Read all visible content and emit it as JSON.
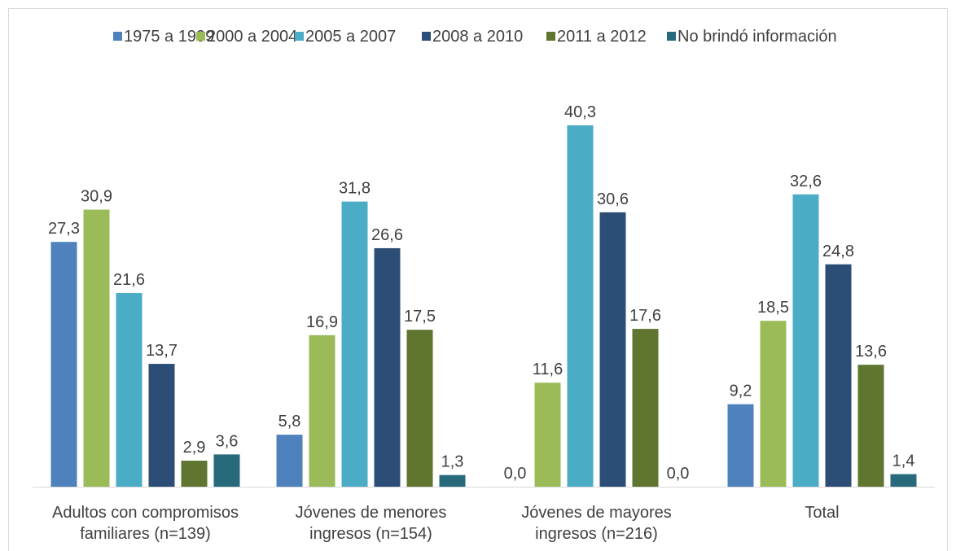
{
  "chart_data": {
    "type": "bar",
    "categories": [
      [
        "Adultos con compromisos",
        "familiares (n=139)"
      ],
      [
        "Jóvenes de menores",
        "ingresos (n=154)"
      ],
      [
        "Jóvenes de mayores",
        "ingresos (n=216)"
      ],
      [
        "Total"
      ]
    ],
    "series": [
      {
        "name": "1975 a 1999",
        "color": "#4f81bd",
        "values": [
          27.3,
          5.8,
          0.0,
          9.2
        ]
      },
      {
        "name": "2000 a 2004",
        "color": "#9bbb59",
        "values": [
          30.9,
          16.9,
          11.6,
          18.5
        ]
      },
      {
        "name": "2005 a 2007",
        "color": "#4bacc6",
        "values": [
          21.6,
          31.8,
          40.3,
          32.6
        ]
      },
      {
        "name": "2008 a 2010",
        "color": "#2c4d75",
        "values": [
          13.7,
          26.6,
          30.6,
          24.8
        ]
      },
      {
        "name": "2011 a 2012",
        "color": "#5f7530",
        "values": [
          2.9,
          17.5,
          17.6,
          13.6
        ]
      },
      {
        "name": "No brindó información",
        "color": "#276a7c",
        "values": [
          3.6,
          1.3,
          0.0,
          1.4
        ]
      }
    ],
    "value_labels": [
      [
        "27,3",
        "5,8",
        "0,0",
        "9,2"
      ],
      [
        "30,9",
        "16,9",
        "11,6",
        "18,5"
      ],
      [
        "21,6",
        "31,8",
        "40,3",
        "32,6"
      ],
      [
        "13,7",
        "26,6",
        "30,6",
        "24,8"
      ],
      [
        "2,9",
        "17,5",
        "17,6",
        "13,6"
      ],
      [
        "3,6",
        "1,3",
        "0,0",
        "1,4"
      ]
    ],
    "ylim": [
      0,
      45
    ],
    "grid": false,
    "legend_position": "top"
  }
}
